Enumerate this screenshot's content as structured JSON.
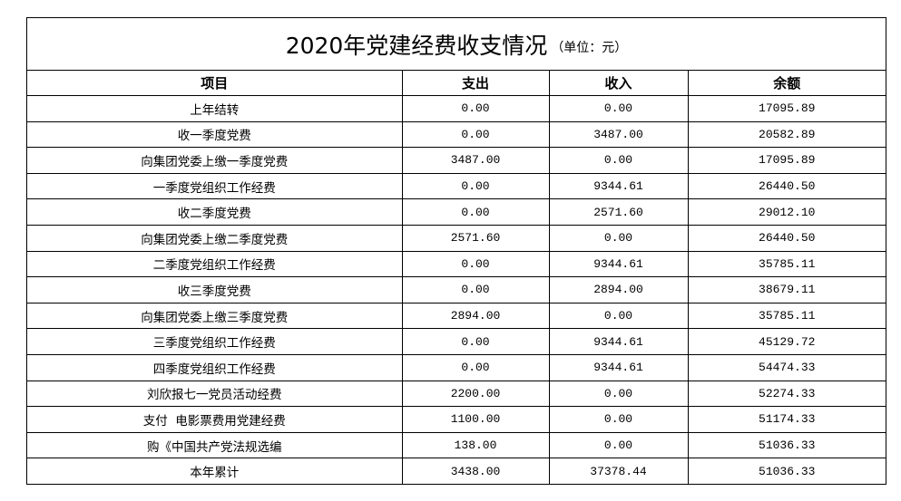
{
  "title": {
    "main": "2020年党建经费收支情况",
    "unit": "（单位：元）"
  },
  "columns": [
    "项目",
    "支出",
    "收入",
    "余额"
  ],
  "rows": [
    [
      "上年结转",
      "0.00",
      "0.00",
      "17095.89"
    ],
    [
      "收一季度党费",
      "0.00",
      "3487.00",
      "20582.89"
    ],
    [
      "向集团党委上缴一季度党费",
      "3487.00",
      "0.00",
      "17095.89"
    ],
    [
      "一季度党组织工作经费",
      "0.00",
      "9344.61",
      "26440.50"
    ],
    [
      "收二季度党费",
      "0.00",
      "2571.60",
      "29012.10"
    ],
    [
      "向集团党委上缴二季度党费",
      "2571.60",
      "0.00",
      "26440.50"
    ],
    [
      "二季度党组织工作经费",
      "0.00",
      "9344.61",
      "35785.11"
    ],
    [
      "收三季度党费",
      "0.00",
      "2894.00",
      "38679.11"
    ],
    [
      "向集团党委上缴三季度党费",
      "2894.00",
      "0.00",
      "35785.11"
    ],
    [
      "三季度党组织工作经费",
      "0.00",
      "9344.61",
      "45129.72"
    ],
    [
      "四季度党组织工作经费",
      "0.00",
      "9344.61",
      "54474.33"
    ],
    [
      "刘欣报七一党员活动经费",
      "2200.00",
      "0.00",
      "52274.33"
    ],
    [
      "支付  电影票费用党建经费",
      "1100.00",
      "0.00",
      "51174.33"
    ],
    [
      "购《中国共产党法规选编",
      "138.00",
      "0.00",
      "51036.33"
    ],
    [
      "本年累计",
      "3438.00",
      "37378.44",
      "51036.33"
    ]
  ]
}
